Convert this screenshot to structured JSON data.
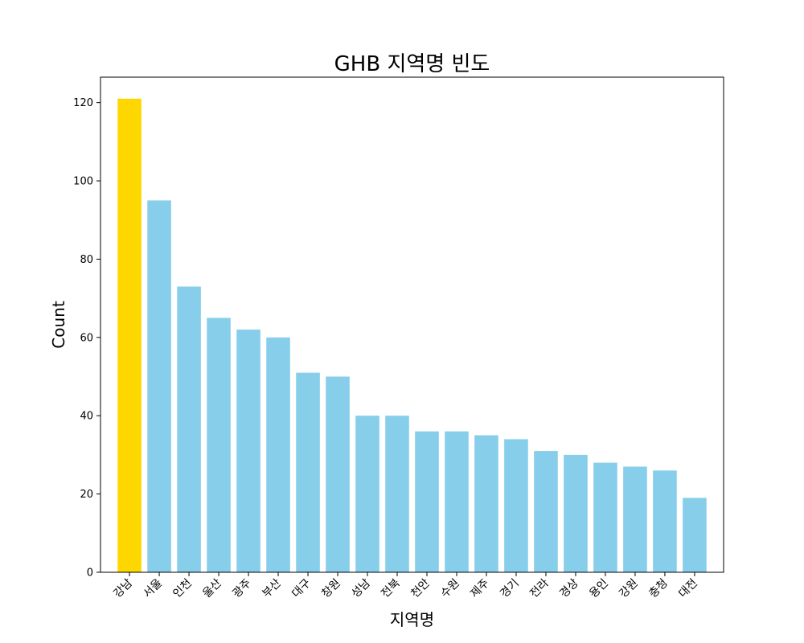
{
  "chart_data": {
    "type": "bar",
    "title": "GHB 지역명 빈도",
    "xlabel": "지역명",
    "ylabel": "Count",
    "categories": [
      "강남",
      "서울",
      "인천",
      "울산",
      "광주",
      "부산",
      "대구",
      "창원",
      "성남",
      "전북",
      "천안",
      "수원",
      "제주",
      "경기",
      "전라",
      "경상",
      "용인",
      "강원",
      "충청",
      "대전"
    ],
    "values": [
      121,
      95,
      73,
      65,
      62,
      60,
      51,
      50,
      40,
      40,
      36,
      36,
      35,
      34,
      31,
      30,
      28,
      27,
      26,
      19
    ],
    "ylim": [
      0,
      126.5
    ],
    "yticks": [
      0,
      20,
      40,
      60,
      80,
      100,
      120
    ],
    "grid": false,
    "colors": {
      "highlight": "#FFD700",
      "default": "#87CEEB",
      "axis": "#000000"
    },
    "highlight_index": 0
  }
}
